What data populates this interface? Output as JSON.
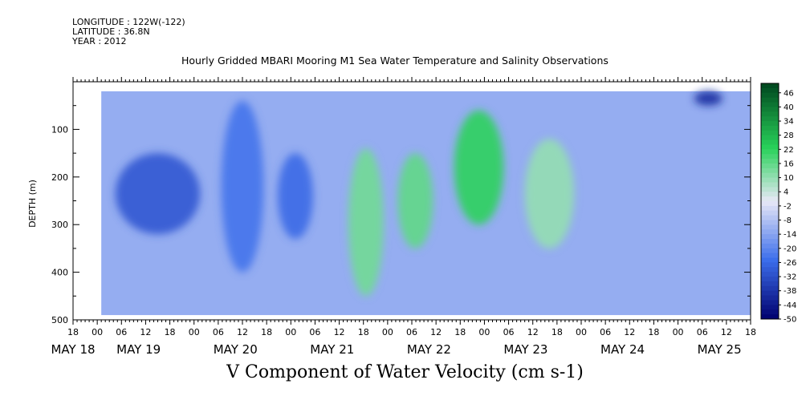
{
  "header": {
    "longitude": "LONGITUDE : 122W(-122)",
    "latitude": "LATITUDE : 36.8N",
    "year": "YEAR : 2012",
    "title": "Hourly Gridded MBARI Mooring M1 Sea Water Temperature and Salinity Observations"
  },
  "chart_data": {
    "type": "heatmap",
    "title": "Hourly Gridded MBARI Mooring M1 Sea Water Temperature and Salinity Observations",
    "variable_label": "V Component of Water Velocity (cm s-1)",
    "xlabel": "",
    "ylabel": "DEPTH (m)",
    "x_range": [
      "2012-05-17 18:00",
      "2012-05-25 18:00"
    ],
    "y_range": [
      500,
      0
    ],
    "y_inverted": true,
    "x_hour_ticks": [
      "18",
      "00",
      "06",
      "12",
      "18",
      "00",
      "06",
      "12",
      "18",
      "00",
      "06",
      "12",
      "18",
      "00",
      "06",
      "12",
      "18",
      "00",
      "06",
      "12",
      "18",
      "00",
      "06",
      "12",
      "18",
      "00",
      "06",
      "12",
      "18"
    ],
    "x_day_labels": [
      "MAY 18",
      "MAY 19",
      "MAY 20",
      "MAY 21",
      "MAY 22",
      "MAY 23",
      "MAY 24",
      "MAY 25"
    ],
    "y_ticks": [
      "100",
      "200",
      "300",
      "400",
      "500"
    ],
    "colorbar": {
      "min": -50,
      "max": 50,
      "step": 2,
      "labels": [
        "46",
        "40",
        "34",
        "28",
        "22",
        "16",
        "10",
        "4",
        "-2",
        "-8",
        "-14",
        "-20",
        "-26",
        "-32",
        "-38",
        "-44",
        "-50"
      ],
      "low_color": "#00006e",
      "mid_color": "#e8e8f6",
      "high_color": "#00461e"
    },
    "data_extent": {
      "start": "2012-05-18 02:00",
      "end": "2012-05-25 18:00",
      "top_depth_m": 20,
      "bottom_depth_m": 490
    },
    "features": [
      {
        "label": "strong southward flow, mid depth",
        "start": "2012-05-18 06:00",
        "end": "2012-05-19 06:00",
        "depth_m": [
          150,
          320
        ],
        "value": -30
      },
      {
        "label": "southward flow",
        "start": "2012-05-19 12:00",
        "end": "2012-05-20 00:00",
        "depth_m": [
          40,
          400
        ],
        "value": -24
      },
      {
        "label": "southward flow",
        "start": "2012-05-20 04:00",
        "end": "2012-05-20 14:00",
        "depth_m": [
          150,
          330
        ],
        "value": -26
      },
      {
        "label": "northward flow",
        "start": "2012-05-21 00:00",
        "end": "2012-05-21 10:00",
        "depth_m": [
          140,
          450
        ],
        "value": 14
      },
      {
        "label": "northward flow",
        "start": "2012-05-21 14:00",
        "end": "2012-05-22 00:00",
        "depth_m": [
          150,
          350
        ],
        "value": 16
      },
      {
        "label": "strong northward flow",
        "start": "2012-05-22 06:00",
        "end": "2012-05-22 20:00",
        "depth_m": [
          60,
          300
        ],
        "value": 22
      },
      {
        "label": "northward flow",
        "start": "2012-05-23 02:00",
        "end": "2012-05-23 16:00",
        "depth_m": [
          120,
          350
        ],
        "value": 10
      },
      {
        "label": "surface southward jet",
        "start": "2012-05-25 02:00",
        "end": "2012-05-25 10:00",
        "depth_m": [
          20,
          50
        ],
        "value": -40
      }
    ],
    "grid": false,
    "legend": "colorbar right"
  }
}
